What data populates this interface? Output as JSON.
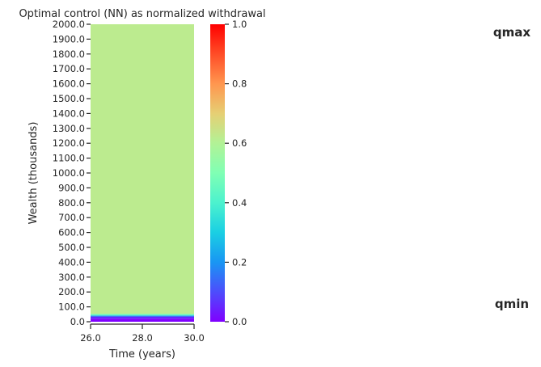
{
  "chart_data": {
    "type": "heatmap",
    "title": "Optimal control (NN) as normalized withdrawal",
    "xlabel": "Time (years)",
    "ylabel": "Wealth (thousands)",
    "x_ticks": [
      "26.0",
      "28.0",
      "30.0"
    ],
    "x_range": [
      26,
      30
    ],
    "y_ticks": [
      "0.0",
      "100.0",
      "200.0",
      "300.0",
      "400.0",
      "500.0",
      "600.0",
      "700.0",
      "800.0",
      "900.0",
      "1000.0",
      "1100.0",
      "1200.0",
      "1300.0",
      "1400.0",
      "1500.0",
      "1600.0",
      "1700.0",
      "1800.0",
      "1900.0",
      "2000.0"
    ],
    "y_range": [
      0,
      2000
    ],
    "bands": [
      {
        "wealth_from": 0,
        "wealth_to": 20,
        "value": 0.0
      },
      {
        "wealth_from": 20,
        "wealth_to": 35,
        "value": 0.05
      },
      {
        "wealth_from": 35,
        "wealth_to": 42,
        "value": 0.2
      },
      {
        "wealth_from": 42,
        "wealth_to": 52,
        "value": 0.45
      },
      {
        "wealth_from": 52,
        "wealth_to": 2000,
        "value": 0.62
      }
    ],
    "colorbar": {
      "colormap": "rainbow",
      "range": [
        0,
        1
      ],
      "ticks": [
        "0.0",
        "0.2",
        "0.4",
        "0.6",
        "0.8",
        "1.0"
      ]
    },
    "annotations": {
      "top": "qmax",
      "bottom": "qmin"
    }
  }
}
